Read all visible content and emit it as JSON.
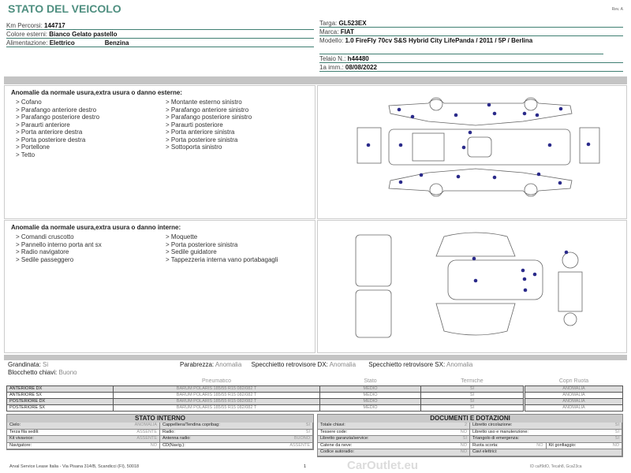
{
  "header": {
    "title": "STATO DEL VEICOLO",
    "rev": "Rev. A"
  },
  "vehicle_left": [
    {
      "label": "Km Percorsi:",
      "value": "144717"
    },
    {
      "label": "Colore esterni:",
      "value": "Bianco Gelato pastello"
    },
    {
      "label": "Alimentazione:",
      "value": "Elettrico",
      "value2": "Benzina"
    }
  ],
  "vehicle_right": [
    {
      "label": "Targa:",
      "value": "GL523EX"
    },
    {
      "label": "Marca:",
      "value": "FIAT"
    },
    {
      "label": "Modello:",
      "value": "1.0 FireFly 70cv S&S Hybrid City LifePanda / 2011 / 5P / Berlina"
    },
    {
      "label": "Telaio N.:",
      "value": "h44480"
    },
    {
      "label": "1a imm.:",
      "value": "08/08/2022"
    }
  ],
  "exterior": {
    "title": "Anomalie da normale usura,extra usura o danno esterne:",
    "col1": [
      "> Cofano",
      "> Parafango anteriore destro",
      "> Parafango posteriore destro",
      "> Paraurti anteriore",
      "> Porta anteriore destra",
      "> Porta posteriore destra",
      "> Portellone",
      "> Tetto"
    ],
    "col2": [
      "> Montante esterno sinistro",
      "> Parafango anteriore sinistro",
      "> Parafango posteriore sinistro",
      "> Paraurti posteriore",
      "> Porta anteriore sinistra",
      "> Porta posteriore sinistra",
      "> Sottoporta sinistro"
    ]
  },
  "interior": {
    "title": "Anomalie da normale usura,extra usura o danno interne:",
    "col1": [
      "> Comandi cruscotto",
      "> Pannello interno porta ant sx",
      "> Radio navigatore",
      "> Sedile passeggero"
    ],
    "col2": [
      "> Moquette",
      "> Porta posteriore sinistra",
      "> Sedile guidatore",
      "> Tappezzeria interna vano portabagagli"
    ]
  },
  "checks": {
    "grandinata_label": "Grandinata:",
    "grandinata": "Si",
    "blocchetto_label": "Blocchetto chiavi:",
    "blocchetto": "Buono",
    "parabrezza_label": "Parabrezza:",
    "parabrezza": "Anomalia",
    "spec_dx_label": "Specchietto retrovisore DX:",
    "spec_dx": "Anomalia",
    "spec_sx_label": "Specchietto retrovisore SX:",
    "spec_sx": "Anomalia"
  },
  "tyres": {
    "headers": [
      "Pneumatico",
      "Stato",
      "Termiche",
      "Copri Ruota"
    ],
    "rows": [
      {
        "pos": "ANTERIORE DX",
        "tyre": "BARUM POLARIS 185/55 R15 082/082 T",
        "stato": "MEDIO",
        "term": "SI",
        "copri": "ANOMALIA"
      },
      {
        "pos": "ANTERIORE SX",
        "tyre": "BARUM POLARIS 185/55 R15 082/082 T",
        "stato": "MEDIO",
        "term": "SI",
        "copri": "ANOMALIA"
      },
      {
        "pos": "POSTERIORE DX",
        "tyre": "BARUM POLARIS 185/55 R15 082/082 T",
        "stato": "MEDIO",
        "term": "SI",
        "copri": "ANOMALIA"
      },
      {
        "pos": "POSTERIORE SX",
        "tyre": "BARUM POLARIS 185/55 R15 082/082 T",
        "stato": "MEDIO",
        "term": "SI",
        "copri": "ANOMALIA"
      }
    ]
  },
  "stato_interno": {
    "title": "STATO INTERNO",
    "rows": [
      [
        {
          "k": "Cielo:",
          "v": "ANOMALIA"
        },
        {
          "k": "Cappelliera/Tendina copribag:",
          "v": "SI"
        }
      ],
      [
        {
          "k": "Terza fila sedili:",
          "v": "ASSENTE"
        },
        {
          "k": "Radio:",
          "v": "SI"
        }
      ],
      [
        {
          "k": "Kit vivavoce:",
          "v": "ASSENTE"
        },
        {
          "k": "Antenna radio:",
          "v": "BUONO"
        }
      ],
      [
        {
          "k": "Navigatore:",
          "v": "NO"
        },
        {
          "k": "CD(Navig.):",
          "v": "ASSENTE"
        }
      ]
    ]
  },
  "documenti": {
    "title": "DOCUMENTI E DOTAZIONI",
    "rows": [
      [
        {
          "k": "Totale chiavi:",
          "v": "2"
        },
        {
          "k": "Libretto circolazione:",
          "v": "SI"
        }
      ],
      [
        {
          "k": "Tessere code:",
          "v": "NO"
        },
        {
          "k": "Libretto uso e manutenzione:",
          "v": "SI"
        }
      ],
      [
        {
          "k": "Libretto garanzia/service:",
          "v": "SI"
        },
        {
          "k": "Triangolo di emergenza:",
          "v": "SI"
        }
      ],
      [
        {
          "k": "Catene da neve:",
          "v": "NO"
        },
        {
          "k": "Ruota scorta:",
          "v": "NO"
        },
        {
          "k": "Kit gonfiaggio:",
          "v": "NO"
        }
      ],
      [
        {
          "k": "Codice autoradio:",
          "v": "NO"
        },
        {
          "k": "Cavi elettrici:",
          "v": ""
        }
      ]
    ]
  },
  "footer": {
    "address": "Arval Service Lease Italia - Via Pisana 314/B, Scandicci (FI), 50018",
    "page": "1",
    "watermark": "CarOutlet.eu",
    "code": "ID ca/f9dO, Tecah8, Gca23ca"
  },
  "colors": {
    "title": "#4f8f80",
    "damage_dot": "#2a2a8a",
    "section_bar": "#c4c4c4"
  }
}
